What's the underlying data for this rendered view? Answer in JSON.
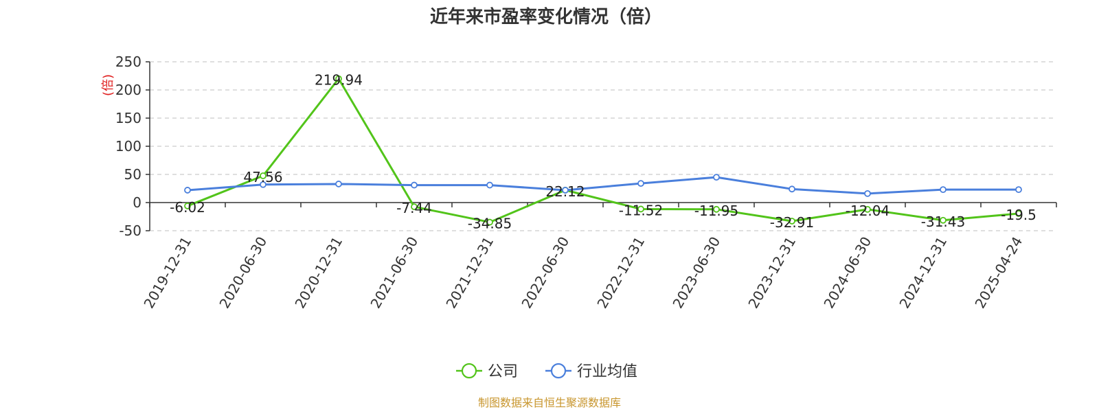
{
  "chart_data": {
    "type": "line",
    "title": "近年来市盈率变化情况（倍）",
    "ylabel": "(倍)",
    "xlabel": "",
    "ylim": [
      -50,
      250
    ],
    "yticks": [
      250,
      200,
      150,
      100,
      50,
      0,
      -50
    ],
    "grid": true,
    "legend_position": "bottom-center",
    "categories": [
      "2019-12-31",
      "2020-06-30",
      "2020-12-31",
      "2021-06-30",
      "2021-12-31",
      "2022-06-30",
      "2022-12-31",
      "2023-06-30",
      "2023-12-31",
      "2024-06-30",
      "2024-12-31",
      "2025-04-24"
    ],
    "series": [
      {
        "name": "公司",
        "color": "#52c41a",
        "values": [
          -6.02,
          47.56,
          219.94,
          -7.44,
          -34.85,
          22.12,
          -11.52,
          -11.95,
          -32.91,
          -12.04,
          -31.43,
          -19.5
        ],
        "labels": [
          "-6.02",
          "47.56",
          "219.94",
          "-7.44",
          "-34.85",
          "22.12",
          "-11.52",
          "-11.95",
          "-32.91",
          "-12.04",
          "-31.43",
          "-19.5"
        ]
      },
      {
        "name": "行业均值",
        "color": "#4a7fdc",
        "values": [
          22,
          32,
          33,
          31,
          31,
          22,
          34,
          45,
          24,
          16,
          23,
          23
        ]
      }
    ],
    "source": "制图数据来自恒生聚源数据库"
  }
}
